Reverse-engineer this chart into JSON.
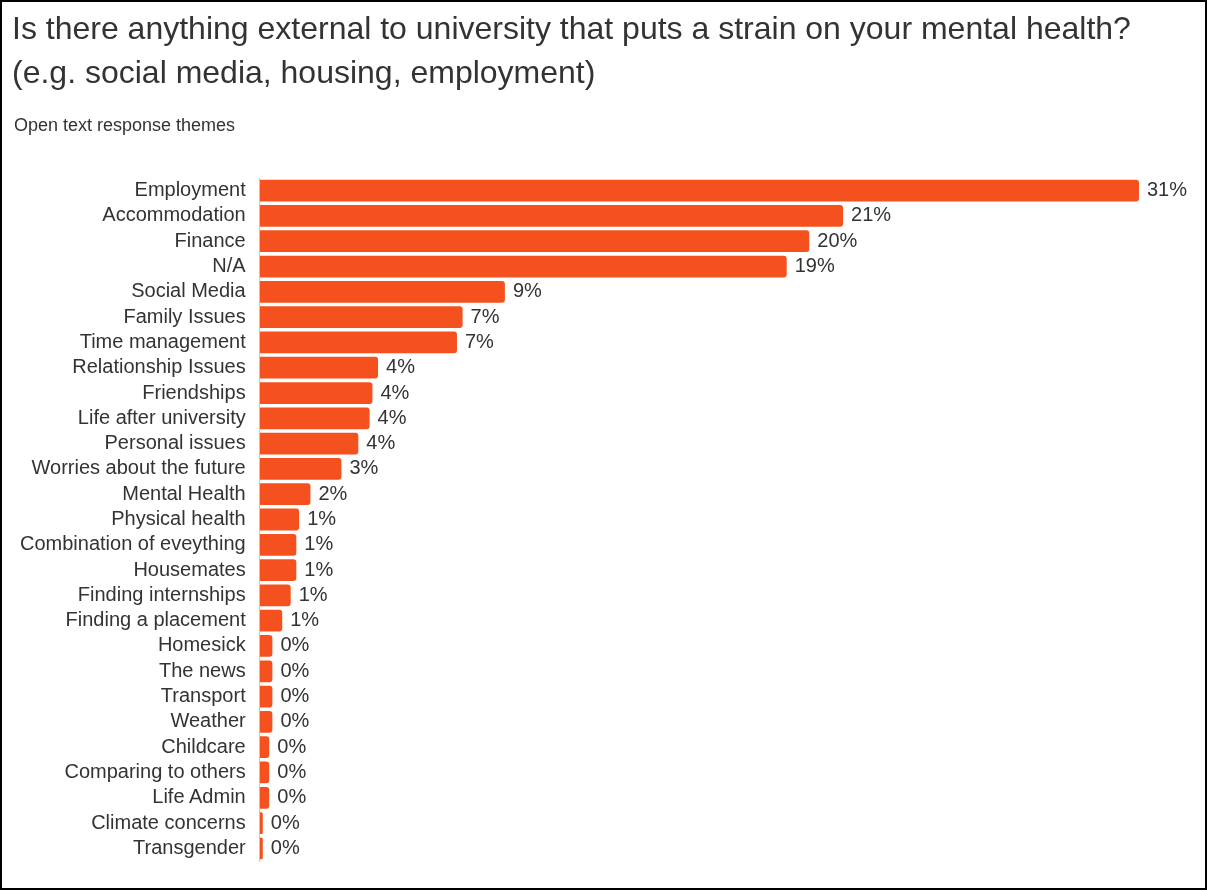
{
  "chart_data": {
    "type": "bar",
    "orientation": "horizontal",
    "title": "Is there anything external to university that puts a strain on your mental health? (e.g. social media, housing, employment)",
    "subtitle": "Open text response themes",
    "categories": [
      "Employment",
      "Accommodation",
      "Finance",
      "N/A",
      "Social Media",
      "Family Issues",
      "Time management",
      "Relationship Issues",
      "Friendships",
      "Life after university",
      "Personal issues",
      "Worries about the future",
      "Mental Health",
      "Physical health",
      "Combination of eveything",
      "Housemates",
      "Finding internships",
      "Finding a placement",
      "Homesick",
      "The news",
      "Transport",
      "Weather",
      "Childcare",
      "Comparing to others",
      "Life Admin",
      "Climate concerns",
      "Transgender"
    ],
    "values": [
      31.2,
      20.7,
      19.5,
      18.7,
      8.7,
      7.2,
      7.0,
      4.2,
      4.0,
      3.9,
      3.5,
      2.9,
      1.8,
      1.4,
      1.3,
      1.3,
      1.1,
      0.8,
      0.45,
      0.45,
      0.45,
      0.45,
      0.34,
      0.34,
      0.34,
      0.11,
      0.11
    ],
    "value_labels": [
      "31%",
      "21%",
      "20%",
      "19%",
      "9%",
      "7%",
      "7%",
      "4%",
      "4%",
      "4%",
      "4%",
      "3%",
      "2%",
      "1%",
      "1%",
      "1%",
      "1%",
      "1%",
      "0%",
      "0%",
      "0%",
      "0%",
      "0%",
      "0%",
      "0%",
      "0%",
      "0%"
    ],
    "color": "#f4511e"
  }
}
